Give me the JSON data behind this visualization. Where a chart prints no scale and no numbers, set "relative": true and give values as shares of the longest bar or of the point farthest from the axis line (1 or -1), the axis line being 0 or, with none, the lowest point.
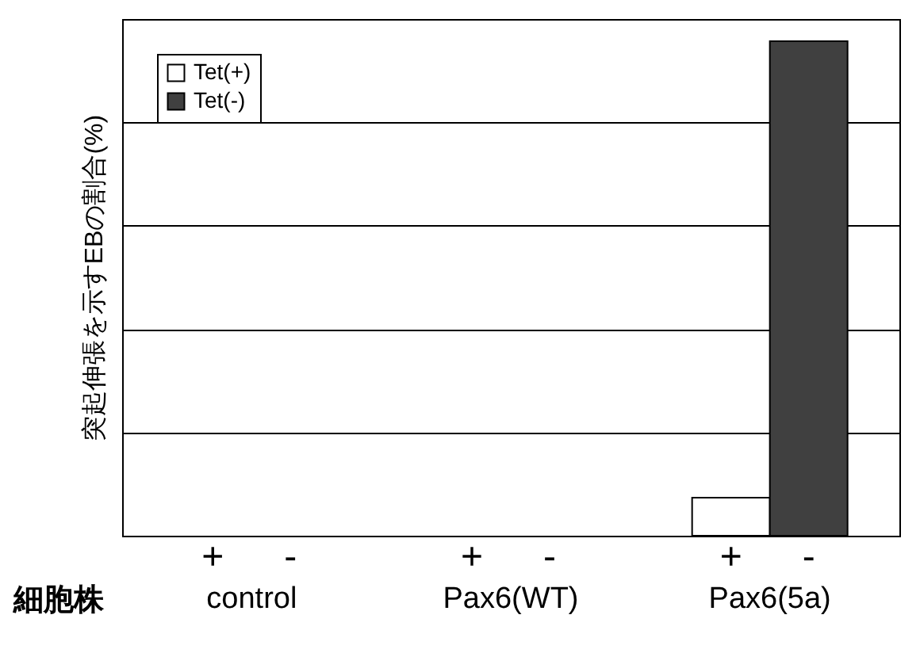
{
  "chart_data": {
    "type": "bar",
    "relative": true,
    "ylabel": "突起伸張を示すEBの割合(%)",
    "xlabel": "細胞株",
    "categories": [
      "control",
      "Pax6(WT)",
      "Pax6(5a)"
    ],
    "series": [
      {
        "name": "Tet(+)",
        "color": "#ffffff",
        "values": [
          null,
          null,
          0.077
        ]
      },
      {
        "name": "Tet(-)",
        "color": "#404040",
        "values": [
          null,
          null,
          1
        ]
      }
    ],
    "annotations": [
      "+",
      "-",
      "+",
      "-",
      "+",
      "-"
    ],
    "grid": "y",
    "legend": "top left"
  }
}
